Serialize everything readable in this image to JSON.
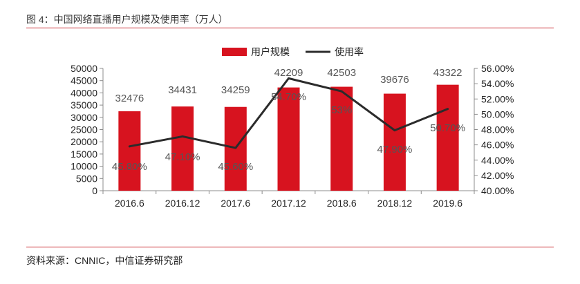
{
  "figure": {
    "title": "图 4：中国网络直播用户规模及使用率（万人）",
    "source": "资料来源：CNNIC，中信证券研究部"
  },
  "colors": {
    "bar": "#d7131f",
    "line": "#2b2b2b",
    "accent_rule": "#c9262c"
  },
  "chart_data": {
    "type": "bar",
    "categories": [
      "2016.6",
      "2016.12",
      "2017.6",
      "2017.12",
      "2018.6",
      "2018.12",
      "2019.6"
    ],
    "series": [
      {
        "name": "用户规模",
        "type": "bar",
        "axis": "left",
        "values": [
          32476,
          34431,
          34259,
          42209,
          42503,
          39676,
          43322
        ],
        "labels": [
          "32476",
          "34431",
          "34259",
          "42209",
          "42503",
          "39676",
          "43322"
        ]
      },
      {
        "name": "使用率",
        "type": "line",
        "axis": "right",
        "values": [
          45.8,
          47.1,
          45.6,
          54.7,
          53.0,
          47.9,
          50.7
        ],
        "labels": [
          "45.80%",
          "47.10%",
          "45.60%",
          "54.70%",
          "53%",
          "47.90%",
          "50.70%"
        ]
      }
    ],
    "y_left": {
      "lim": [
        0,
        50000
      ],
      "ticks": [
        "0",
        "5000",
        "10000",
        "15000",
        "20000",
        "25000",
        "30000",
        "35000",
        "40000",
        "45000",
        "50000"
      ]
    },
    "y_right": {
      "lim": [
        40,
        56
      ],
      "ticks": [
        "40.00%",
        "42.00%",
        "44.00%",
        "46.00%",
        "48.00%",
        "50.00%",
        "52.00%",
        "54.00%",
        "56.00%"
      ]
    },
    "legend_position": "top-center",
    "grid": false
  }
}
